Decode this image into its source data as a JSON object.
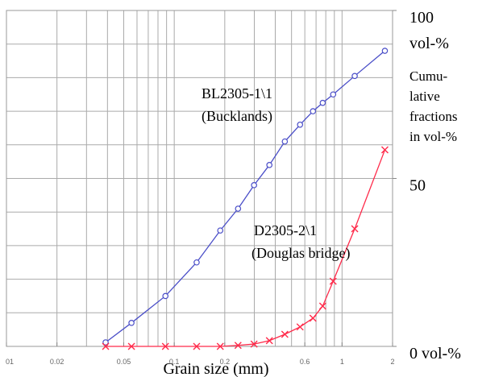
{
  "chart_data": {
    "type": "line",
    "x_label": "Grain size (mm)",
    "y_label_lines": [
      "Cumu-",
      "lative",
      "fractions",
      "in vol-%"
    ],
    "y_unit": "vol-%",
    "log_x": true,
    "xlim": [
      0.01,
      2
    ],
    "ylim": [
      0,
      100
    ],
    "xticks": [
      {
        "value": 0.01,
        "label": "01"
      },
      0.02,
      0.05,
      0.1,
      0.2,
      0.6,
      1,
      2
    ],
    "yticks": [
      {
        "value": 0,
        "label": "0 vol-%"
      },
      50,
      100
    ],
    "grid": true,
    "x_grid": [
      0.02,
      0.03,
      0.04,
      0.05,
      0.06,
      0.07,
      0.08,
      0.09,
      0.1,
      0.2,
      0.3,
      0.4,
      0.5,
      0.6,
      0.7,
      0.8,
      0.9,
      1,
      2
    ],
    "y_grid": [
      10,
      20,
      30,
      40,
      50,
      60,
      70,
      80,
      90
    ],
    "series": [
      {
        "name": "BL2305-1\\1",
        "note": "(Bucklands)",
        "color": "#4a4ec8",
        "marker": "circle",
        "x": [
          0.039,
          0.0556,
          0.0886,
          0.136,
          0.188,
          0.24,
          0.299,
          0.369,
          0.456,
          0.562,
          0.671,
          0.767,
          0.885,
          1.19,
          1.8
        ],
        "values": [
          1.2,
          7,
          15,
          25,
          34.5,
          41,
          48,
          54,
          61,
          66,
          70,
          72.5,
          75,
          80.5,
          88
        ]
      },
      {
        "name": "D2305-2\\1",
        "note": "(Douglas bridge)",
        "color": "#ff2a4a",
        "marker": "x",
        "x": [
          0.039,
          0.0556,
          0.0886,
          0.136,
          0.188,
          0.24,
          0.299,
          0.369,
          0.456,
          0.562,
          0.671,
          0.767,
          0.885,
          1.19,
          1.8
        ],
        "values": [
          0,
          0,
          0,
          0,
          0,
          0.3,
          0.7,
          1.7,
          3.6,
          5.8,
          8.4,
          12,
          19.4,
          35,
          58.5
        ]
      }
    ]
  }
}
